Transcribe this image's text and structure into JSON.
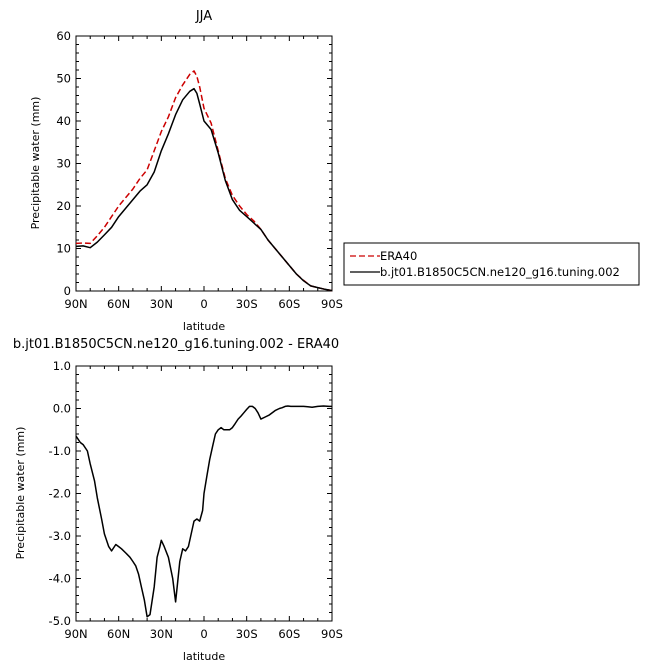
{
  "chart_data": [
    {
      "type": "line",
      "title": "JJA",
      "xlabel": "latitude",
      "ylabel": "Precipitable water (mm)",
      "xlim": [
        90,
        -90
      ],
      "ylim": [
        0,
        60
      ],
      "x_ticks": [
        90,
        60,
        30,
        0,
        -30,
        -60,
        -90
      ],
      "x_tick_labels": [
        "90N",
        "60N",
        "30N",
        "0",
        "30S",
        "60S",
        "90S"
      ],
      "y_ticks": [
        0,
        10,
        20,
        30,
        40,
        50,
        60
      ],
      "y_tick_labels": [
        "0",
        "10",
        "20",
        "30",
        "40",
        "50",
        "60"
      ],
      "legend": "outside-right",
      "series": [
        {
          "name": "ERA40",
          "color": "#cc0000",
          "dash": "dashed",
          "x": [
            90,
            85,
            80,
            75,
            70,
            65,
            60,
            55,
            50,
            45,
            40,
            35,
            30,
            25,
            20,
            15,
            10,
            7,
            5,
            3,
            0,
            -5,
            -10,
            -15,
            -20,
            -25,
            -30,
            -35,
            -40,
            -45,
            -50,
            -55,
            -60,
            -65,
            -70,
            -75,
            -80,
            -85,
            -90
          ],
          "values": [
            11.2,
            11.3,
            11.2,
            13,
            15,
            17.5,
            20,
            22,
            24,
            26.5,
            28.5,
            33,
            37.5,
            41,
            45.5,
            48.5,
            51,
            51.8,
            50.5,
            48,
            43,
            39.5,
            33,
            26.5,
            22.5,
            20,
            18,
            16.5,
            14.5,
            12,
            10,
            8,
            6,
            4,
            2.5,
            1.2,
            0.8,
            0.4,
            0.1
          ]
        },
        {
          "name": "b.jt01.B1850C5CN.ne120_g16.tuning.002",
          "color": "#000000",
          "dash": "solid",
          "x": [
            90,
            85,
            80,
            75,
            70,
            65,
            60,
            55,
            50,
            45,
            40,
            35,
            30,
            25,
            20,
            15,
            10,
            7,
            5,
            3,
            0,
            -5,
            -10,
            -15,
            -20,
            -25,
            -30,
            -35,
            -40,
            -45,
            -50,
            -55,
            -60,
            -65,
            -70,
            -75,
            -80,
            -85,
            -90
          ],
          "values": [
            10.5,
            10.6,
            10.2,
            11.5,
            13.2,
            15,
            17.5,
            19.5,
            21.5,
            23.5,
            25,
            28,
            33,
            37,
            41.5,
            45,
            47,
            47.6,
            46.5,
            44,
            40,
            38,
            32.5,
            26,
            21.5,
            19,
            17.5,
            16,
            14.5,
            12,
            10,
            8,
            6,
            4,
            2.4,
            1.2,
            0.8,
            0.4,
            0.1
          ]
        }
      ]
    },
    {
      "type": "line",
      "title": "b.jt01.B1850C5CN.ne120_g16.tuning.002 - ERA40",
      "xlabel": "latitude",
      "ylabel": "Precipitable water (mm)",
      "xlim": [
        90,
        -90
      ],
      "ylim": [
        -5,
        1
      ],
      "x_ticks": [
        90,
        60,
        30,
        0,
        -30,
        -60,
        -90
      ],
      "x_tick_labels": [
        "90N",
        "60N",
        "30N",
        "0",
        "30S",
        "60S",
        "90S"
      ],
      "y_ticks": [
        -5,
        -4,
        -3,
        -2,
        -1,
        0,
        1
      ],
      "y_tick_labels": [
        "-5.0",
        "-4.0",
        "-3.0",
        "-2.0",
        "-1.0",
        "0.0",
        "1.0"
      ],
      "series": [
        {
          "color": "#000000",
          "dash": "solid",
          "x": [
            90,
            87,
            85,
            82,
            80,
            77,
            75,
            72,
            70,
            67,
            65,
            62,
            60,
            58,
            55,
            52,
            50,
            48,
            46,
            44,
            42,
            40,
            38,
            35,
            33,
            31,
            30,
            28,
            25,
            22,
            20,
            17,
            15,
            13,
            11,
            9,
            7,
            5,
            3,
            1,
            0,
            -2,
            -4,
            -6,
            -8,
            -10,
            -12,
            -14,
            -16,
            -18,
            -20,
            -22,
            -24,
            -26,
            -28,
            -30,
            -32,
            -34,
            -36,
            -38,
            -40,
            -43,
            -46,
            -50,
            -53,
            -55,
            -57,
            -59,
            -61,
            -63,
            -65,
            -67,
            -70,
            -73,
            -76,
            -80,
            -84,
            -88,
            -90
          ],
          "values": [
            -0.65,
            -0.8,
            -0.85,
            -1.0,
            -1.3,
            -1.7,
            -2.1,
            -2.6,
            -2.95,
            -3.25,
            -3.35,
            -3.2,
            -3.25,
            -3.3,
            -3.4,
            -3.5,
            -3.6,
            -3.7,
            -3.9,
            -4.2,
            -4.5,
            -4.9,
            -4.85,
            -4.2,
            -3.5,
            -3.25,
            -3.1,
            -3.25,
            -3.5,
            -4.0,
            -4.55,
            -3.6,
            -3.3,
            -3.35,
            -3.25,
            -2.95,
            -2.65,
            -2.6,
            -2.65,
            -2.4,
            -2.0,
            -1.6,
            -1.2,
            -0.9,
            -0.6,
            -0.5,
            -0.45,
            -0.5,
            -0.5,
            -0.5,
            -0.45,
            -0.35,
            -0.25,
            -0.18,
            -0.1,
            -0.02,
            0.05,
            0.05,
            0.0,
            -0.1,
            -0.25,
            -0.2,
            -0.15,
            -0.05,
            0.0,
            0.02,
            0.05,
            0.06,
            0.05,
            0.05,
            0.05,
            0.05,
            0.05,
            0.04,
            0.03,
            0.05,
            0.06,
            0.05,
            0.05
          ]
        }
      ]
    }
  ]
}
